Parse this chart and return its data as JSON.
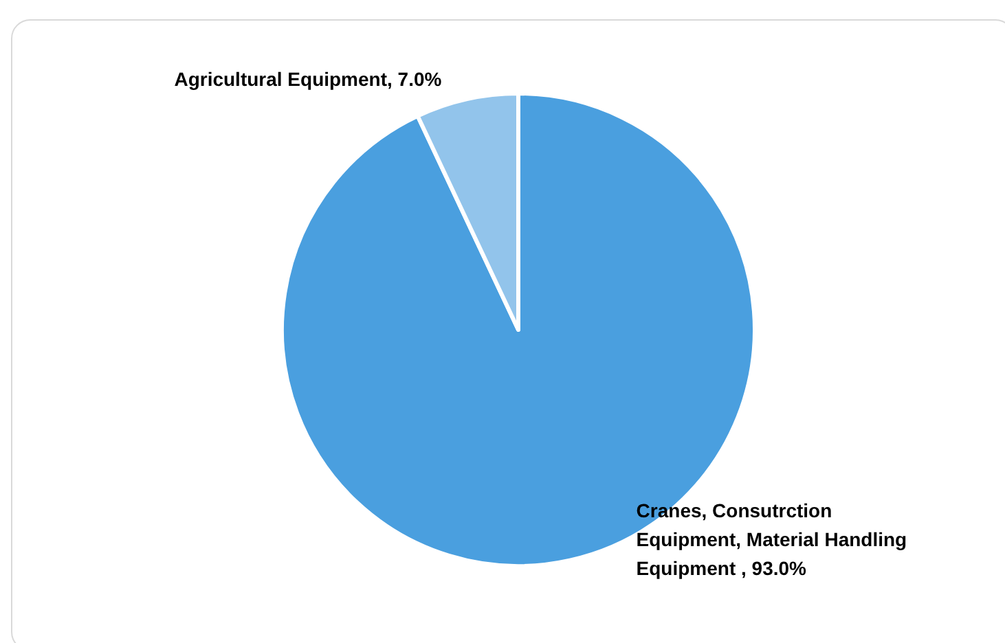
{
  "chart_data": {
    "type": "pie",
    "categories": [
      "Cranes, Consutrction Equipment, Material Handling Equipment ",
      "Agricultural Equipment"
    ],
    "values": [
      93.0,
      7.0
    ],
    "value_labels": [
      "93.0%",
      "7.0%"
    ],
    "colors": [
      "#4a9fdf",
      "#92c4eb"
    ],
    "legend": false
  }
}
